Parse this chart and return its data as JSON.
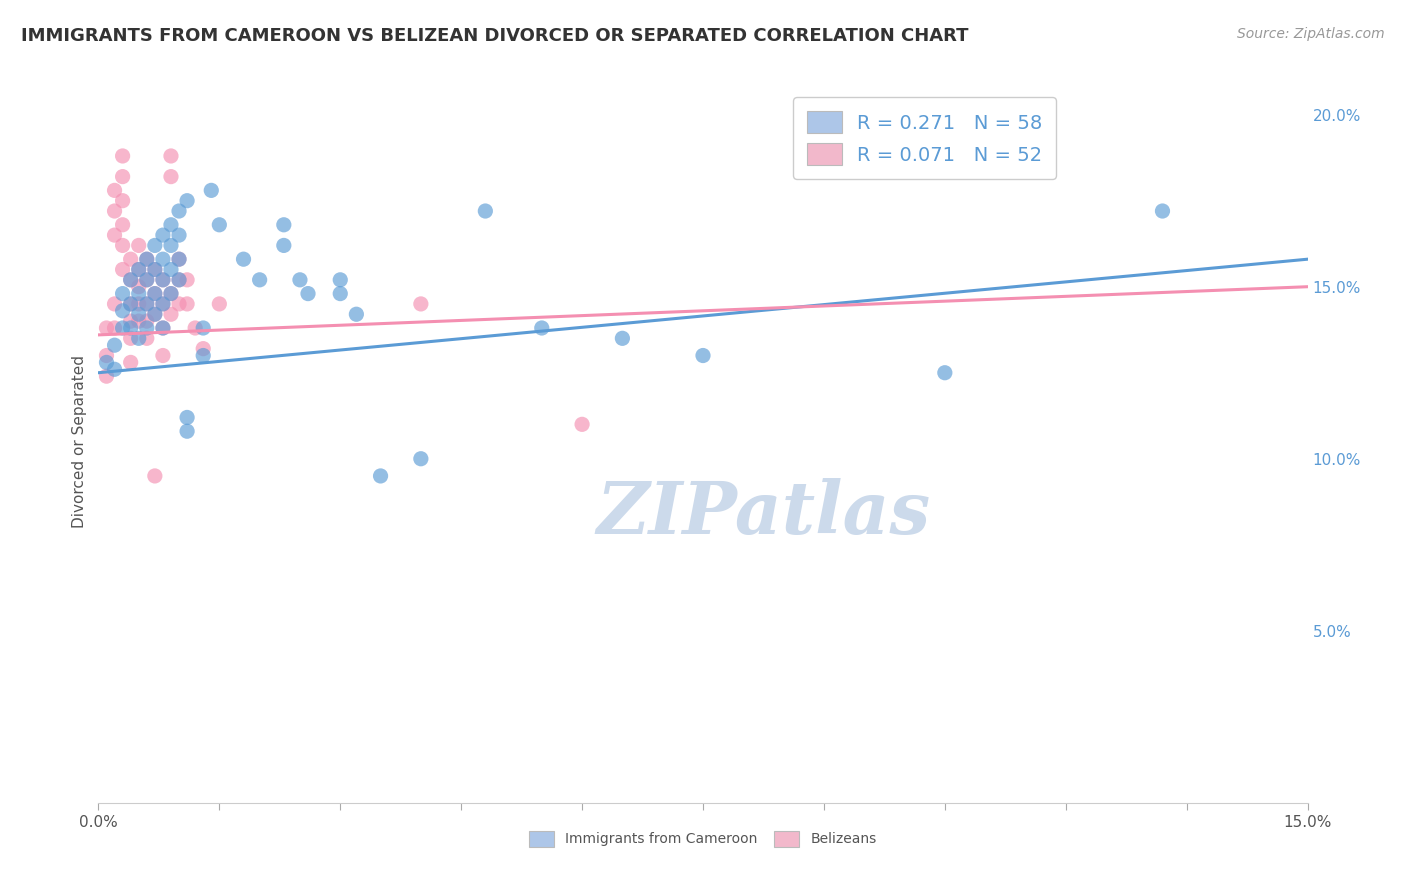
{
  "title": "IMMIGRANTS FROM CAMEROON VS BELIZEAN DIVORCED OR SEPARATED CORRELATION CHART",
  "source": "Source: ZipAtlas.com",
  "ylabel": "Divorced or Separated",
  "x_min": 0.0,
  "x_max": 0.15,
  "y_min": 0.0,
  "y_max": 0.21,
  "y_ticks_right": [
    0.05,
    0.1,
    0.15,
    0.2
  ],
  "y_tick_labels_right": [
    "5.0%",
    "10.0%",
    "15.0%",
    "20.0%"
  ],
  "legend_r1": "R = 0.271   N = 58",
  "legend_r2": "R = 0.071   N = 52",
  "legend_color1": "#adc6e8",
  "legend_color2": "#f2b8cb",
  "watermark": "ZIPatlas",
  "blue_color": "#5b9bd5",
  "pink_color": "#f48fb1",
  "blue_scatter": [
    [
      0.001,
      0.128
    ],
    [
      0.002,
      0.133
    ],
    [
      0.002,
      0.126
    ],
    [
      0.003,
      0.148
    ],
    [
      0.003,
      0.143
    ],
    [
      0.003,
      0.138
    ],
    [
      0.004,
      0.152
    ],
    [
      0.004,
      0.145
    ],
    [
      0.004,
      0.138
    ],
    [
      0.005,
      0.155
    ],
    [
      0.005,
      0.148
    ],
    [
      0.005,
      0.142
    ],
    [
      0.005,
      0.135
    ],
    [
      0.006,
      0.158
    ],
    [
      0.006,
      0.152
    ],
    [
      0.006,
      0.145
    ],
    [
      0.006,
      0.138
    ],
    [
      0.007,
      0.162
    ],
    [
      0.007,
      0.155
    ],
    [
      0.007,
      0.148
    ],
    [
      0.007,
      0.142
    ],
    [
      0.008,
      0.165
    ],
    [
      0.008,
      0.158
    ],
    [
      0.008,
      0.152
    ],
    [
      0.008,
      0.145
    ],
    [
      0.008,
      0.138
    ],
    [
      0.009,
      0.168
    ],
    [
      0.009,
      0.162
    ],
    [
      0.009,
      0.155
    ],
    [
      0.009,
      0.148
    ],
    [
      0.01,
      0.172
    ],
    [
      0.01,
      0.165
    ],
    [
      0.01,
      0.158
    ],
    [
      0.01,
      0.152
    ],
    [
      0.011,
      0.175
    ],
    [
      0.011,
      0.112
    ],
    [
      0.011,
      0.108
    ],
    [
      0.013,
      0.138
    ],
    [
      0.013,
      0.13
    ],
    [
      0.014,
      0.178
    ],
    [
      0.015,
      0.168
    ],
    [
      0.018,
      0.158
    ],
    [
      0.02,
      0.152
    ],
    [
      0.023,
      0.168
    ],
    [
      0.023,
      0.162
    ],
    [
      0.025,
      0.152
    ],
    [
      0.026,
      0.148
    ],
    [
      0.03,
      0.152
    ],
    [
      0.03,
      0.148
    ],
    [
      0.032,
      0.142
    ],
    [
      0.035,
      0.095
    ],
    [
      0.04,
      0.1
    ],
    [
      0.048,
      0.172
    ],
    [
      0.055,
      0.138
    ],
    [
      0.065,
      0.135
    ],
    [
      0.075,
      0.13
    ],
    [
      0.105,
      0.125
    ],
    [
      0.132,
      0.172
    ]
  ],
  "pink_scatter": [
    [
      0.001,
      0.138
    ],
    [
      0.001,
      0.13
    ],
    [
      0.001,
      0.124
    ],
    [
      0.002,
      0.178
    ],
    [
      0.002,
      0.172
    ],
    [
      0.002,
      0.165
    ],
    [
      0.002,
      0.145
    ],
    [
      0.002,
      0.138
    ],
    [
      0.003,
      0.188
    ],
    [
      0.003,
      0.182
    ],
    [
      0.003,
      0.175
    ],
    [
      0.003,
      0.168
    ],
    [
      0.003,
      0.162
    ],
    [
      0.003,
      0.155
    ],
    [
      0.004,
      0.158
    ],
    [
      0.004,
      0.152
    ],
    [
      0.004,
      0.145
    ],
    [
      0.004,
      0.14
    ],
    [
      0.004,
      0.135
    ],
    [
      0.004,
      0.128
    ],
    [
      0.005,
      0.162
    ],
    [
      0.005,
      0.155
    ],
    [
      0.005,
      0.15
    ],
    [
      0.005,
      0.145
    ],
    [
      0.005,
      0.14
    ],
    [
      0.006,
      0.158
    ],
    [
      0.006,
      0.152
    ],
    [
      0.006,
      0.145
    ],
    [
      0.006,
      0.14
    ],
    [
      0.006,
      0.135
    ],
    [
      0.007,
      0.155
    ],
    [
      0.007,
      0.148
    ],
    [
      0.007,
      0.142
    ],
    [
      0.007,
      0.095
    ],
    [
      0.008,
      0.152
    ],
    [
      0.008,
      0.145
    ],
    [
      0.008,
      0.138
    ],
    [
      0.008,
      0.13
    ],
    [
      0.009,
      0.188
    ],
    [
      0.009,
      0.182
    ],
    [
      0.009,
      0.148
    ],
    [
      0.009,
      0.142
    ],
    [
      0.01,
      0.158
    ],
    [
      0.01,
      0.152
    ],
    [
      0.01,
      0.145
    ],
    [
      0.011,
      0.152
    ],
    [
      0.011,
      0.145
    ],
    [
      0.012,
      0.138
    ],
    [
      0.013,
      0.132
    ],
    [
      0.015,
      0.145
    ],
    [
      0.04,
      0.145
    ],
    [
      0.06,
      0.11
    ]
  ],
  "blue_line_x": [
    0.0,
    0.15
  ],
  "blue_line_y": [
    0.125,
    0.158
  ],
  "pink_line_x": [
    0.0,
    0.15
  ],
  "pink_line_y": [
    0.136,
    0.15
  ],
  "x_ticks": [
    0.0,
    0.015,
    0.03,
    0.045,
    0.06,
    0.075,
    0.09,
    0.105,
    0.12,
    0.135,
    0.15
  ],
  "grid_color": "#d0d0d0",
  "background_color": "#ffffff",
  "title_fontsize": 13,
  "axis_label_fontsize": 11,
  "tick_fontsize": 11,
  "legend_fontsize": 14,
  "watermark_fontsize": 52,
  "watermark_color": "#ccdaeb",
  "source_fontsize": 10,
  "scatter_size": 120,
  "scatter_alpha": 0.65
}
